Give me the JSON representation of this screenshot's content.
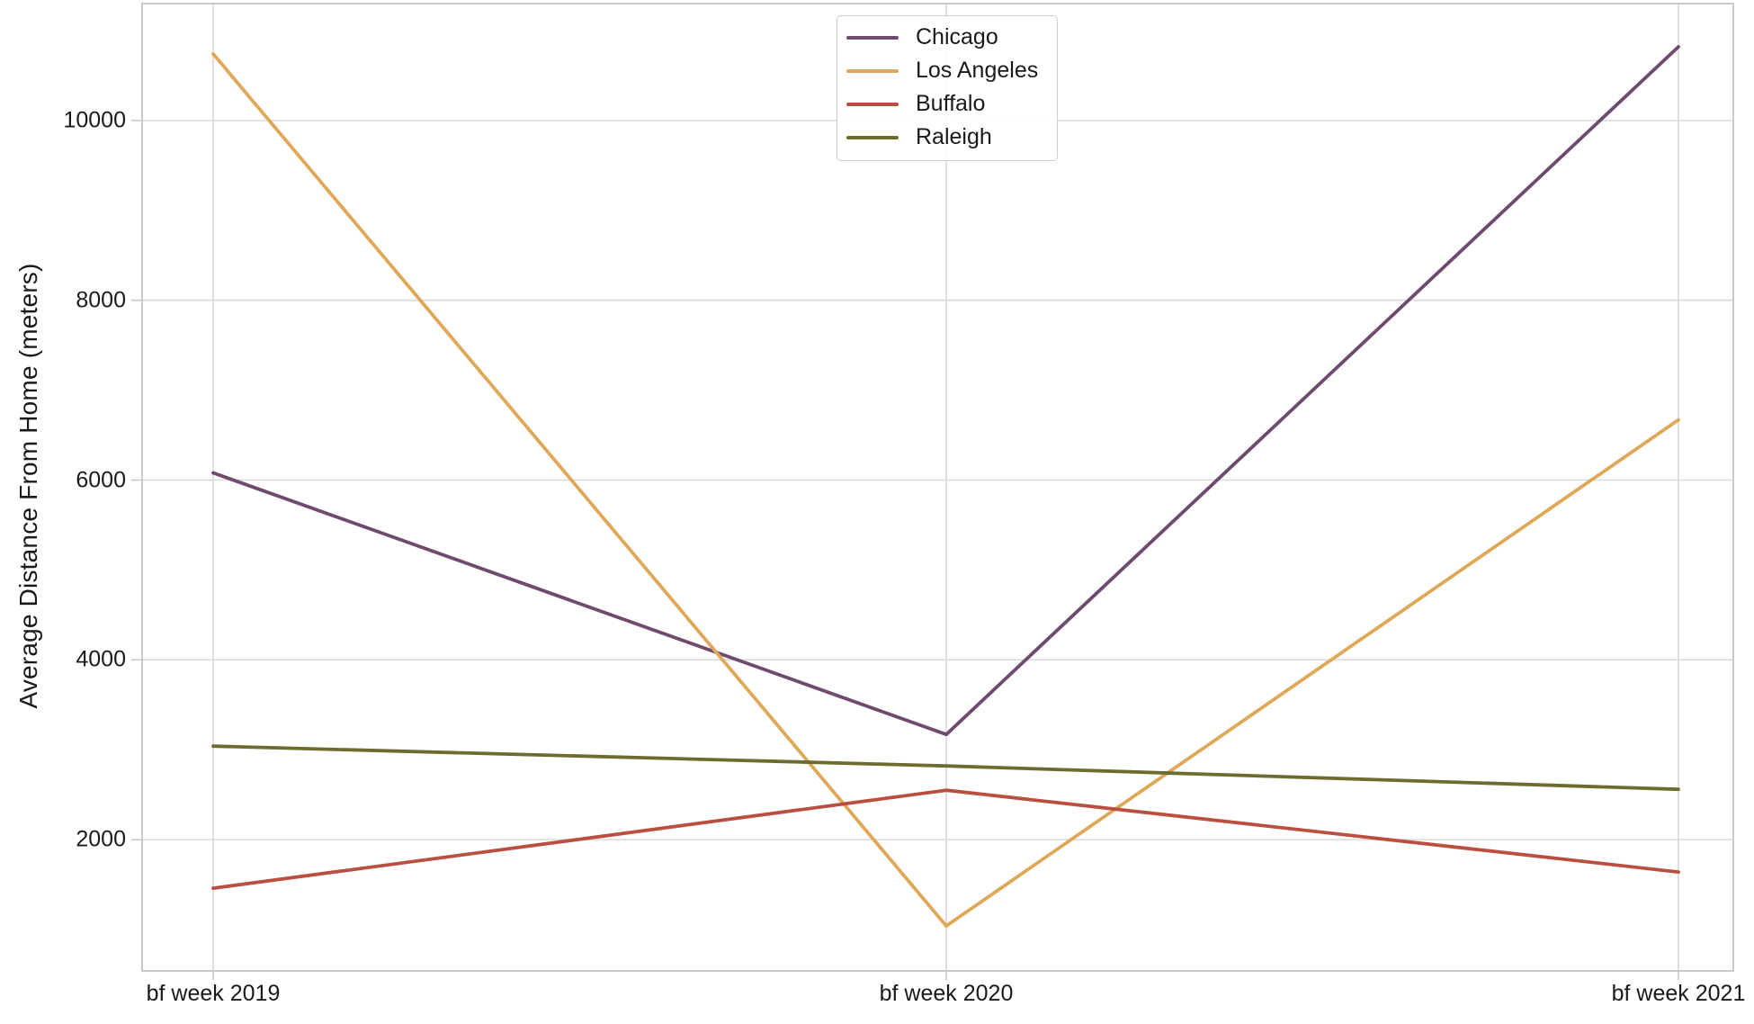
{
  "chart_data": {
    "type": "line",
    "title": "",
    "xlabel": "",
    "ylabel": "Average Distance From Home (meters)",
    "categories": [
      "bf week 2019",
      "bf week 2020",
      "bf week 2021"
    ],
    "y_ticks": [
      2000,
      4000,
      6000,
      8000,
      10000
    ],
    "ylim": [
      540,
      11300
    ],
    "grid": true,
    "legend_position": "upper center",
    "series": [
      {
        "name": "Chicago",
        "color": "#6e4a6e",
        "values": [
          6080,
          3170,
          10820
        ]
      },
      {
        "name": "Los Angeles",
        "color": "#dfa858",
        "values": [
          10740,
          1040,
          6670
        ]
      },
      {
        "name": "Buffalo",
        "color": "#bb4f3f",
        "values": [
          1460,
          2550,
          1640
        ]
      },
      {
        "name": "Raleigh",
        "color": "#6c6c30",
        "values": [
          3040,
          2820,
          2560
        ]
      }
    ],
    "style": {
      "grid_color": "#d9d9d9",
      "border_color": "#c9c9c9",
      "tick_color": "#c9c9c9",
      "text_color": "#1a1a1a",
      "background": "#ffffff"
    }
  }
}
